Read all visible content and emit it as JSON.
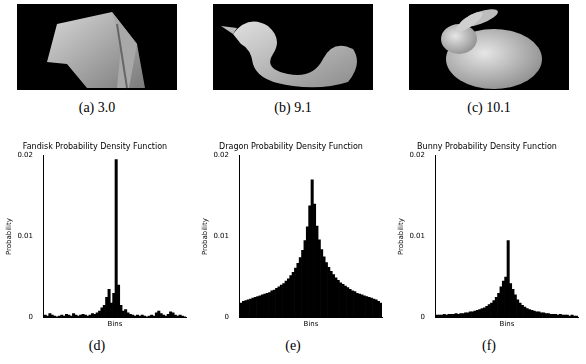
{
  "image_panels": [
    {
      "caption": "(a) 3.0"
    },
    {
      "caption": "(b) 9.1"
    },
    {
      "caption": "(c) 10.1"
    }
  ],
  "chart_data": [
    {
      "type": "bar",
      "title": "Fandisk Probability Density Function",
      "caption": "(d)",
      "x_label": "Bins",
      "y_label": "Probability",
      "categories": [
        null,
        null,
        null,
        null,
        null,
        null,
        null,
        null,
        null,
        null,
        null,
        null,
        null,
        null,
        null,
        null,
        null,
        null,
        null,
        null,
        null,
        null,
        null,
        null,
        null,
        null,
        null,
        null,
        null,
        null,
        null,
        null,
        null,
        null,
        null,
        null,
        null,
        null,
        null,
        null,
        null,
        null,
        null,
        null,
        null,
        null,
        null,
        null,
        null,
        null,
        null,
        null,
        null,
        null,
        null,
        null,
        null,
        null,
        null,
        null
      ],
      "values": [
        0.0003,
        0.0002,
        0.0005,
        0.0003,
        0.0002,
        0.0001,
        0.0002,
        0.0003,
        0.0002,
        0.0004,
        0.0003,
        0.0002,
        0.0005,
        0.0003,
        0.0002,
        0.0003,
        0.0004,
        0.0003,
        0.0002,
        0.0003,
        0.0005,
        0.0004,
        0.0006,
        0.0008,
        0.0012,
        0.0015,
        0.0025,
        0.0035,
        0.0018,
        0.003,
        0.0195,
        0.004,
        0.0015,
        0.0008,
        0.001,
        0.0006,
        0.0004,
        0.0003,
        0.0002,
        0.0003,
        0.0002,
        0.0003,
        0.0002,
        0.0001,
        0.0002,
        0.0003,
        0.0002,
        0.0006,
        0.0008,
        0.0005,
        0.0003,
        0.0002,
        0.0004,
        0.0007,
        0.0006,
        0.0003,
        0.0002,
        0.0003,
        0.0002,
        0.0001
      ],
      "color": "#000000",
      "ylim": [
        0,
        0.02
      ],
      "yticks": [
        0,
        0.01,
        0.02
      ],
      "tick_labels": "y",
      "grid": false
    },
    {
      "type": "bar",
      "title": "Dragon Probability Density Function",
      "caption": "(e)",
      "x_label": "Bins",
      "y_label": "Probability",
      "categories": [
        null,
        null,
        null,
        null,
        null,
        null,
        null,
        null,
        null,
        null,
        null,
        null,
        null,
        null,
        null,
        null,
        null,
        null,
        null,
        null,
        null,
        null,
        null,
        null,
        null,
        null,
        null,
        null,
        null,
        null,
        null,
        null,
        null,
        null,
        null,
        null,
        null,
        null,
        null,
        null,
        null,
        null,
        null,
        null,
        null,
        null,
        null,
        null,
        null,
        null,
        null,
        null,
        null,
        null,
        null,
        null,
        null,
        null,
        null,
        null
      ],
      "values": [
        0.0018,
        0.002,
        0.0021,
        0.0022,
        0.0023,
        0.0024,
        0.0025,
        0.0026,
        0.0027,
        0.0028,
        0.0029,
        0.003,
        0.0031,
        0.0033,
        0.0034,
        0.0036,
        0.0038,
        0.004,
        0.0042,
        0.0045,
        0.0048,
        0.0052,
        0.0056,
        0.0061,
        0.0067,
        0.0074,
        0.0083,
        0.0095,
        0.0112,
        0.0138,
        0.017,
        0.014,
        0.0113,
        0.0096,
        0.0084,
        0.0075,
        0.0068,
        0.0062,
        0.0057,
        0.0053,
        0.0049,
        0.0046,
        0.0043,
        0.0041,
        0.0039,
        0.0037,
        0.0035,
        0.0033,
        0.0032,
        0.003,
        0.0029,
        0.0028,
        0.0027,
        0.0026,
        0.0025,
        0.0024,
        0.0023,
        0.0022,
        0.002,
        0.0018
      ],
      "color": "#000000",
      "ylim": [
        0,
        0.02
      ],
      "yticks": [
        0,
        0.01,
        0.02
      ],
      "tick_labels": "y",
      "grid": false
    },
    {
      "type": "bar",
      "title": "Bunny Probability Density Function",
      "caption": "(f)",
      "x_label": "Bins",
      "y_label": "Probability",
      "categories": [
        null,
        null,
        null,
        null,
        null,
        null,
        null,
        null,
        null,
        null,
        null,
        null,
        null,
        null,
        null,
        null,
        null,
        null,
        null,
        null,
        null,
        null,
        null,
        null,
        null,
        null,
        null,
        null,
        null,
        null,
        null,
        null,
        null,
        null,
        null,
        null,
        null,
        null,
        null,
        null,
        null,
        null,
        null,
        null,
        null,
        null,
        null,
        null,
        null,
        null,
        null,
        null,
        null,
        null,
        null,
        null,
        null,
        null,
        null,
        null
      ],
      "values": [
        0.0003,
        0.0003,
        0.0003,
        0.0004,
        0.0003,
        0.0004,
        0.0004,
        0.0004,
        0.0005,
        0.0004,
        0.0005,
        0.0005,
        0.0006,
        0.0006,
        0.0007,
        0.0007,
        0.0008,
        0.0009,
        0.001,
        0.0011,
        0.0012,
        0.0014,
        0.0016,
        0.0018,
        0.0021,
        0.0025,
        0.003,
        0.0038,
        0.0045,
        0.005,
        0.0095,
        0.0042,
        0.0035,
        0.0028,
        0.0022,
        0.0018,
        0.0015,
        0.0013,
        0.0011,
        0.001,
        0.0009,
        0.0008,
        0.0007,
        0.0007,
        0.0006,
        0.0006,
        0.0005,
        0.0005,
        0.0004,
        0.0004,
        0.0004,
        0.0003,
        0.0004,
        0.0003,
        0.0003,
        0.0003,
        0.0002,
        0.0003,
        0.0002,
        0.0002
      ],
      "color": "#000000",
      "ylim": [
        0,
        0.02
      ],
      "yticks": [
        0,
        0.01,
        0.02
      ],
      "tick_labels": "y",
      "grid": false
    }
  ]
}
